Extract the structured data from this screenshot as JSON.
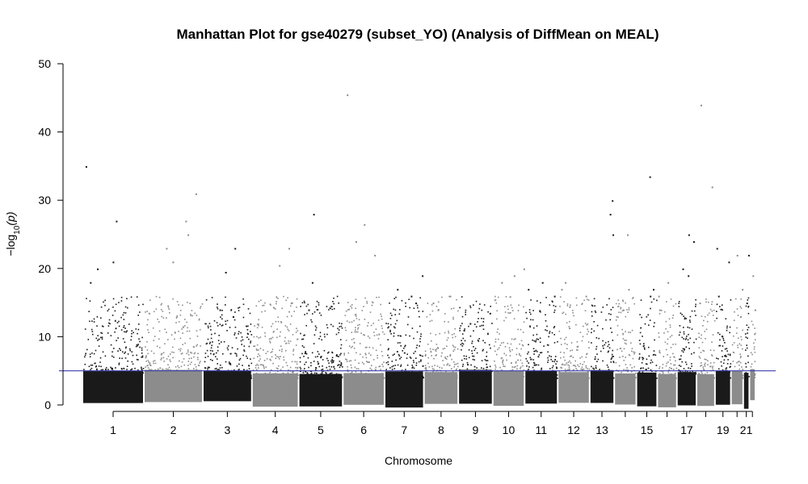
{
  "chart_data": {
    "type": "scatter",
    "subtype": "manhattan",
    "title": "Manhattan Plot for gse40279 (subset_YO) (Analysis of DiffMean on MEAL)",
    "xlabel": "Chromosome",
    "ylabel": "−log10(p)",
    "ylabel_parts": {
      "prefix": "−log",
      "sub": "10",
      "suffix": "(p)"
    },
    "ylim": [
      0,
      50
    ],
    "y_ticks": [
      0,
      10,
      20,
      30,
      40,
      50
    ],
    "y_tick_labels": [
      "0",
      "10",
      "20",
      "30",
      "40",
      "50"
    ],
    "threshold": {
      "value": 5,
      "color": "#3b3bb0"
    },
    "colors": {
      "odd": "#1a1a1a",
      "even": "#8c8c8c"
    },
    "grid": false,
    "chromosome_axis_max": 2740,
    "chromosomes": [
      {
        "chr": "1",
        "start": 0,
        "end": 250,
        "label": "1",
        "peaks": [
          21,
          35,
          27,
          20,
          18
        ]
      },
      {
        "chr": "2",
        "start": 250,
        "end": 490,
        "label": "2",
        "peaks": [
          31,
          27,
          25,
          23,
          21
        ]
      },
      {
        "chr": "3",
        "start": 490,
        "end": 690,
        "label": "3",
        "peaks": [
          23,
          19.5,
          14,
          13
        ]
      },
      {
        "chr": "4",
        "start": 690,
        "end": 880,
        "label": "4",
        "peaks": [
          23,
          20.5,
          15
        ]
      },
      {
        "chr": "5",
        "start": 880,
        "end": 1060,
        "label": "5",
        "peaks": [
          28,
          18,
          14
        ]
      },
      {
        "chr": "6",
        "start": 1060,
        "end": 1230,
        "label": "6",
        "peaks": [
          45.5,
          26.5,
          24,
          22
        ]
      },
      {
        "chr": "7",
        "start": 1230,
        "end": 1390,
        "label": "7",
        "peaks": [
          19,
          17,
          16,
          15
        ]
      },
      {
        "chr": "8",
        "start": 1390,
        "end": 1530,
        "label": "8",
        "peaks": [
          16,
          15,
          14
        ]
      },
      {
        "chr": "9",
        "start": 1530,
        "end": 1670,
        "label": "9",
        "peaks": [
          13.5,
          12,
          11
        ]
      },
      {
        "chr": "10",
        "start": 1670,
        "end": 1800,
        "label": "10",
        "peaks": [
          20,
          19,
          18
        ]
      },
      {
        "chr": "11",
        "start": 1800,
        "end": 1935,
        "label": "11",
        "peaks": [
          18,
          17,
          16
        ]
      },
      {
        "chr": "12",
        "start": 1935,
        "end": 2065,
        "label": "12",
        "peaks": [
          18,
          17,
          16
        ]
      },
      {
        "chr": "13",
        "start": 2065,
        "end": 2165,
        "label": "13",
        "peaks": [
          30,
          28,
          25
        ]
      },
      {
        "chr": "14",
        "start": 2165,
        "end": 2255,
        "label": "",
        "peaks": [
          25,
          17,
          14
        ]
      },
      {
        "chr": "15",
        "start": 2255,
        "end": 2340,
        "label": "15",
        "peaks": [
          33.5,
          17,
          16
        ]
      },
      {
        "chr": "16",
        "start": 2340,
        "end": 2420,
        "label": "",
        "peaks": [
          18,
          16,
          14
        ]
      },
      {
        "chr": "17",
        "start": 2420,
        "end": 2500,
        "label": "17",
        "peaks": [
          25,
          24,
          20,
          19
        ]
      },
      {
        "chr": "18",
        "start": 2500,
        "end": 2575,
        "label": "",
        "peaks": [
          44,
          32,
          15
        ]
      },
      {
        "chr": "19",
        "start": 2575,
        "end": 2640,
        "label": "19",
        "peaks": [
          23,
          21,
          16
        ]
      },
      {
        "chr": "20",
        "start": 2640,
        "end": 2690,
        "label": "",
        "peaks": [
          22,
          17,
          13
        ]
      },
      {
        "chr": "21",
        "start": 2690,
        "end": 2715,
        "label": "21",
        "peaks": [
          22,
          15
        ]
      },
      {
        "chr": "22",
        "start": 2715,
        "end": 2740,
        "label": "",
        "peaks": [
          19,
          14
        ]
      }
    ]
  }
}
